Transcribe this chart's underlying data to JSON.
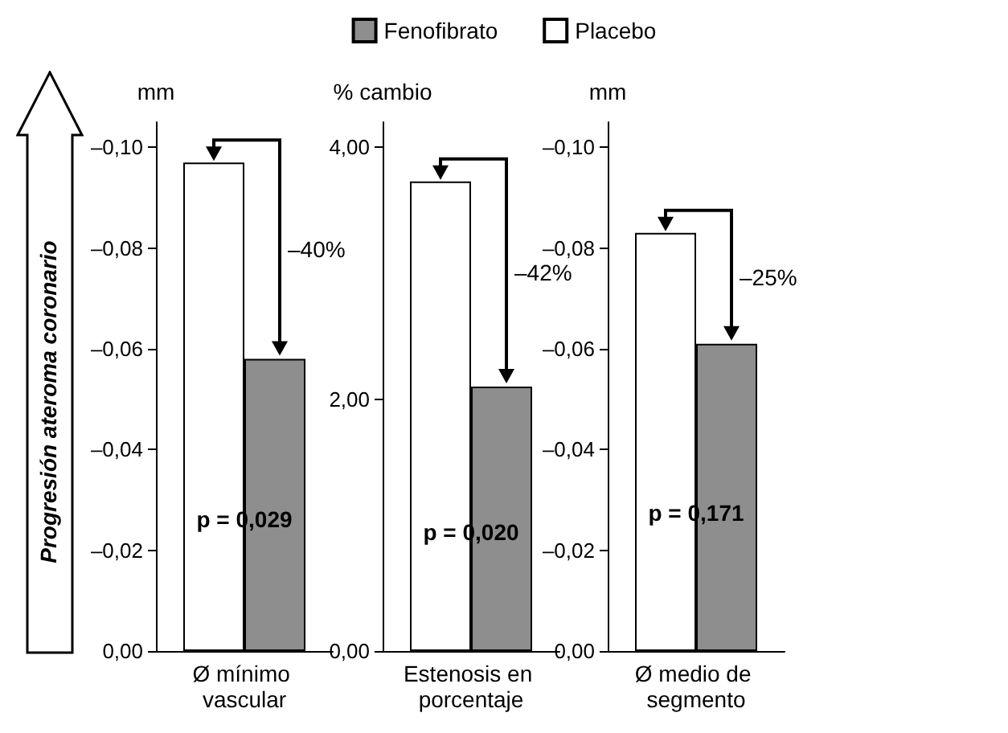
{
  "chart_data": [
    {
      "type": "bar",
      "ylabel": "mm",
      "categories": [
        "Ø mínimo vascular"
      ],
      "ylim": [
        0,
        -0.105
      ],
      "yticks": [
        {
          "value": 0,
          "label": "0,00"
        },
        {
          "value": -0.02,
          "label": "–0,02"
        },
        {
          "value": -0.04,
          "label": "–0,04"
        },
        {
          "value": -0.06,
          "label": "–0,06"
        },
        {
          "value": -0.08,
          "label": "–0,08"
        },
        {
          "value": -0.1,
          "label": "–0,10"
        }
      ],
      "legend": "top",
      "series": [
        {
          "name": "Placebo",
          "color": "#ffffff",
          "values": [
            -0.097
          ]
        },
        {
          "name": "Fenofibrato",
          "color": "#8e8e8e",
          "values": [
            -0.058
          ]
        }
      ],
      "annotations": [
        "–40%",
        "p = 0,029",
        "Progresión ateroma coronario"
      ]
    },
    {
      "type": "bar",
      "ylabel": "% cambio",
      "categories": [
        "Estenosis en porcentaje"
      ],
      "ylim": [
        0,
        4.2
      ],
      "yticks": [
        {
          "value": 0,
          "label": "0,00"
        },
        {
          "value": 2,
          "label": "2,00"
        },
        {
          "value": 4,
          "label": "4,00"
        }
      ],
      "series": [
        {
          "color": "#ffffff",
          "values": [
            3.73
          ]
        },
        {
          "color": "#8e8e8e",
          "values": [
            2.1
          ]
        }
      ],
      "annotations": [
        "–42%",
        "p = 0,020"
      ]
    },
    {
      "type": "bar",
      "ylabel": "mm",
      "categories": [
        "Ø medio de segmento"
      ],
      "ylim": [
        0,
        -0.105
      ],
      "yticks": [
        {
          "value": 0,
          "label": "0,00"
        },
        {
          "value": -0.02,
          "label": "–0,02"
        },
        {
          "value": -0.04,
          "label": "–0,04"
        },
        {
          "value": -0.06,
          "label": "–0,06"
        },
        {
          "value": -0.08,
          "label": "–0,08"
        },
        {
          "value": -0.1,
          "label": "–0,10"
        }
      ],
      "series": [
        {
          "color": "#ffffff",
          "values": [
            -0.083
          ]
        },
        {
          "color": "#8e8e8e",
          "values": [
            -0.061
          ]
        }
      ],
      "annotations": [
        "–25%",
        "p = 0,171"
      ]
    }
  ]
}
